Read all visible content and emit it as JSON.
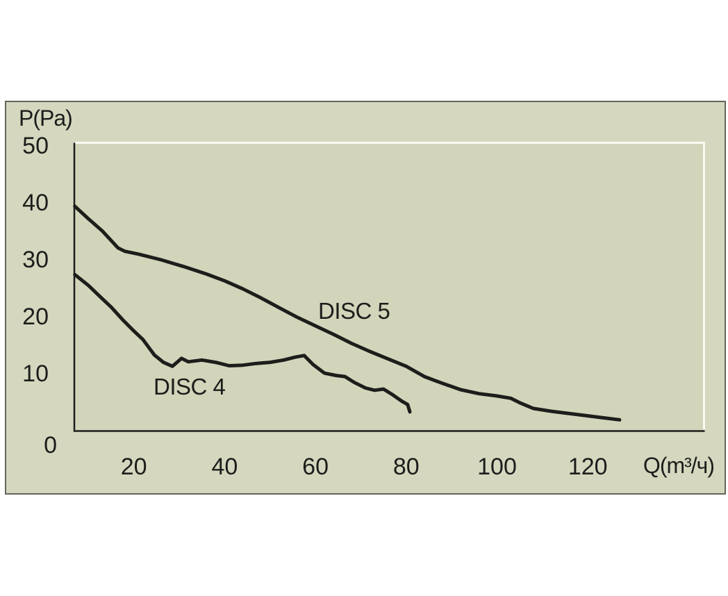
{
  "window": {
    "background": "#ffffff"
  },
  "panel": {
    "background": "#d5d8bf",
    "plot_background": "#d2d5ba",
    "border_color": "#63665a",
    "frame_dark_color": "#1d1d1b",
    "frame_light_color": "#fafaf2",
    "text_color": "#1d1d1b"
  },
  "chart_data": {
    "type": "line",
    "title": "",
    "xlabel": "Q(m³/ч)",
    "ylabel": "P(Pa)",
    "x_ticks": [
      20,
      40,
      60,
      80,
      100,
      120
    ],
    "y_ticks": [
      50,
      40,
      30,
      20,
      10,
      0
    ],
    "xlim": [
      0,
      145
    ],
    "ylim": [
      0,
      50
    ],
    "grid": false,
    "legend": "inline-labels",
    "line_color": "#1d1d1b",
    "series": [
      {
        "name": "DISC 5",
        "points": [
          [
            7,
            39.4
          ],
          [
            10,
            37.2
          ],
          [
            13,
            35.1
          ],
          [
            16.5,
            32.1
          ],
          [
            18,
            31.5
          ],
          [
            21,
            31.0
          ],
          [
            26,
            30.0
          ],
          [
            31,
            28.8
          ],
          [
            36,
            27.5
          ],
          [
            40,
            26.3
          ],
          [
            44,
            24.9
          ],
          [
            48,
            23.3
          ],
          [
            52,
            21.6
          ],
          [
            56,
            19.9
          ],
          [
            60,
            18.4
          ],
          [
            64,
            16.9
          ],
          [
            68,
            15.3
          ],
          [
            72,
            13.9
          ],
          [
            76,
            12.6
          ],
          [
            80,
            11.3
          ],
          [
            84,
            9.5
          ],
          [
            88,
            8.3
          ],
          [
            92,
            7.2
          ],
          [
            96,
            6.5
          ],
          [
            100,
            6.1
          ],
          [
            103,
            5.7
          ],
          [
            105,
            4.9
          ],
          [
            108,
            3.9
          ],
          [
            112,
            3.4
          ],
          [
            118,
            2.8
          ],
          [
            123,
            2.3
          ],
          [
            127,
            1.9
          ]
        ]
      },
      {
        "name": "DISC 4",
        "points": [
          [
            7,
            27.4
          ],
          [
            10,
            25.5
          ],
          [
            13,
            23.2
          ],
          [
            15,
            21.7
          ],
          [
            17.5,
            19.5
          ],
          [
            20,
            17.5
          ],
          [
            22,
            16.0
          ],
          [
            24.5,
            13.3
          ],
          [
            26.5,
            12.0
          ],
          [
            28.5,
            11.3
          ],
          [
            30.5,
            12.7
          ],
          [
            32,
            12.1
          ],
          [
            35,
            12.4
          ],
          [
            38,
            12.0
          ],
          [
            41,
            11.4
          ],
          [
            44,
            11.5
          ],
          [
            47,
            11.8
          ],
          [
            50,
            12.0
          ],
          [
            53,
            12.4
          ],
          [
            55.5,
            12.9
          ],
          [
            57.5,
            13.2
          ],
          [
            59.5,
            11.6
          ],
          [
            62,
            10.1
          ],
          [
            64.5,
            9.7
          ],
          [
            66.5,
            9.5
          ],
          [
            68.5,
            8.5
          ],
          [
            71,
            7.5
          ],
          [
            73,
            7.1
          ],
          [
            75,
            7.3
          ],
          [
            77,
            6.3
          ],
          [
            79,
            5.2
          ],
          [
            80.3,
            4.6
          ],
          [
            80.8,
            3.3
          ]
        ]
      }
    ]
  }
}
